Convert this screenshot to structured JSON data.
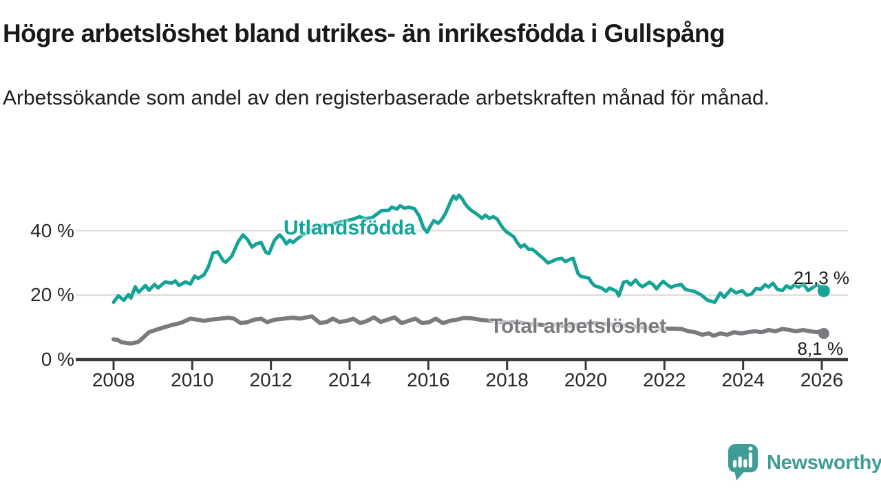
{
  "title": "Högre arbetslöshet bland utrikes- än inrikesfödda i Gullspång",
  "subtitle": "Arbetssökande som andel av den registerbaserade arbetskraften månad för månad.",
  "branding": {
    "logo_text": "Newsworthy",
    "logo_icon": "speech-bubble-with-bar-chart-and-exclamation",
    "logo_color": "#3f9d96"
  },
  "colors": {
    "foreign_born_line": "#14a396",
    "total_line": "#7a7a7f",
    "grid": "#d8d8d8",
    "axis": "#3a3a3e",
    "text": "#1e1e1e"
  },
  "chart_data": {
    "type": "line",
    "unit": "%",
    "grid": "horizontal",
    "legend": "inline-labels",
    "x_axis": {
      "ticks": [
        2008,
        2010,
        2012,
        2014,
        2016,
        2018,
        2020,
        2022,
        2024,
        2026
      ],
      "range": [
        2007.1,
        2026.7
      ]
    },
    "y_axis": {
      "ticks": [
        0,
        20,
        40
      ],
      "tick_labels": [
        "0 %",
        "20 %",
        "40 %"
      ],
      "range": [
        0,
        55
      ]
    },
    "series": [
      {
        "name": "Utlandsfödda",
        "color": "#14a396",
        "end_label": "21,3 %",
        "end_value": 21.3,
        "points": [
          [
            2008.0,
            17.8
          ],
          [
            2008.12,
            19.8
          ],
          [
            2008.26,
            18.4
          ],
          [
            2008.38,
            20.2
          ],
          [
            2008.44,
            19.1
          ],
          [
            2008.55,
            22.6
          ],
          [
            2008.64,
            20.9
          ],
          [
            2008.81,
            23.0
          ],
          [
            2008.9,
            21.5
          ],
          [
            2009.04,
            23.3
          ],
          [
            2009.13,
            22.2
          ],
          [
            2009.31,
            24.1
          ],
          [
            2009.48,
            23.7
          ],
          [
            2009.57,
            24.4
          ],
          [
            2009.66,
            23.0
          ],
          [
            2009.83,
            24.1
          ],
          [
            2009.95,
            23.4
          ],
          [
            2010.06,
            25.9
          ],
          [
            2010.15,
            25.2
          ],
          [
            2010.3,
            26.3
          ],
          [
            2010.41,
            28.8
          ],
          [
            2010.53,
            33.1
          ],
          [
            2010.65,
            33.4
          ],
          [
            2010.79,
            30.6
          ],
          [
            2010.85,
            30.2
          ],
          [
            2011.0,
            32.0
          ],
          [
            2011.17,
            36.6
          ],
          [
            2011.29,
            38.7
          ],
          [
            2011.4,
            37.3
          ],
          [
            2011.52,
            34.9
          ],
          [
            2011.63,
            35.9
          ],
          [
            2011.75,
            36.3
          ],
          [
            2011.87,
            33.3
          ],
          [
            2011.95,
            32.9
          ],
          [
            2012.09,
            37.0
          ],
          [
            2012.22,
            38.7
          ],
          [
            2012.3,
            37.7
          ],
          [
            2012.39,
            35.9
          ],
          [
            2012.48,
            37.0
          ],
          [
            2012.56,
            36.3
          ],
          [
            2012.65,
            37.3
          ],
          [
            2012.77,
            38.4
          ],
          [
            2012.9,
            39.3
          ],
          [
            2013.05,
            40.3
          ],
          [
            2013.2,
            41.0
          ],
          [
            2013.35,
            41.8
          ],
          [
            2013.5,
            41.4
          ],
          [
            2013.65,
            42.3
          ],
          [
            2013.8,
            42.8
          ],
          [
            2013.95,
            43.2
          ],
          [
            2014.1,
            43.6
          ],
          [
            2014.25,
            44.3
          ],
          [
            2014.4,
            43.7
          ],
          [
            2014.58,
            44.1
          ],
          [
            2014.81,
            46.2
          ],
          [
            2014.99,
            46.3
          ],
          [
            2015.07,
            47.3
          ],
          [
            2015.2,
            46.7
          ],
          [
            2015.28,
            47.7
          ],
          [
            2015.4,
            47.0
          ],
          [
            2015.5,
            47.3
          ],
          [
            2015.65,
            46.8
          ],
          [
            2015.77,
            44.5
          ],
          [
            2015.88,
            40.8
          ],
          [
            2015.97,
            39.5
          ],
          [
            2016.06,
            41.6
          ],
          [
            2016.14,
            43.1
          ],
          [
            2016.25,
            42.3
          ],
          [
            2016.32,
            43.1
          ],
          [
            2016.43,
            45.2
          ],
          [
            2016.49,
            46.9
          ],
          [
            2016.58,
            49.4
          ],
          [
            2016.64,
            50.8
          ],
          [
            2016.71,
            49.8
          ],
          [
            2016.78,
            51.0
          ],
          [
            2016.86,
            49.9
          ],
          [
            2016.93,
            48.4
          ],
          [
            2017.0,
            47.3
          ],
          [
            2017.1,
            46.2
          ],
          [
            2017.19,
            45.5
          ],
          [
            2017.3,
            44.5
          ],
          [
            2017.36,
            43.8
          ],
          [
            2017.45,
            44.8
          ],
          [
            2017.55,
            43.8
          ],
          [
            2017.65,
            44.3
          ],
          [
            2017.75,
            43.6
          ],
          [
            2017.83,
            42.0
          ],
          [
            2017.91,
            40.6
          ],
          [
            2018.0,
            39.5
          ],
          [
            2018.09,
            38.8
          ],
          [
            2018.17,
            38.1
          ],
          [
            2018.26,
            36.3
          ],
          [
            2018.35,
            34.9
          ],
          [
            2018.44,
            35.6
          ],
          [
            2018.55,
            34.2
          ],
          [
            2018.63,
            34.3
          ],
          [
            2018.72,
            33.5
          ],
          [
            2018.81,
            32.5
          ],
          [
            2018.92,
            31.4
          ],
          [
            2019.04,
            30.0
          ],
          [
            2019.13,
            30.4
          ],
          [
            2019.25,
            31.1
          ],
          [
            2019.39,
            31.4
          ],
          [
            2019.48,
            30.4
          ],
          [
            2019.6,
            31.1
          ],
          [
            2019.68,
            31.4
          ],
          [
            2019.8,
            26.8
          ],
          [
            2019.88,
            25.8
          ],
          [
            2020.0,
            25.5
          ],
          [
            2020.09,
            25.2
          ],
          [
            2020.14,
            24.0
          ],
          [
            2020.23,
            22.9
          ],
          [
            2020.31,
            22.6
          ],
          [
            2020.4,
            22.2
          ],
          [
            2020.52,
            21.2
          ],
          [
            2020.6,
            22.2
          ],
          [
            2020.7,
            21.7
          ],
          [
            2020.78,
            21.2
          ],
          [
            2020.84,
            19.8
          ],
          [
            2020.96,
            24.0
          ],
          [
            2021.05,
            24.3
          ],
          [
            2021.14,
            23.2
          ],
          [
            2021.21,
            24.0
          ],
          [
            2021.27,
            24.7
          ],
          [
            2021.35,
            23.4
          ],
          [
            2021.44,
            22.6
          ],
          [
            2021.53,
            23.3
          ],
          [
            2021.62,
            24.0
          ],
          [
            2021.71,
            23.3
          ],
          [
            2021.8,
            21.9
          ],
          [
            2021.88,
            23.2
          ],
          [
            2021.97,
            24.3
          ],
          [
            2022.06,
            23.3
          ],
          [
            2022.17,
            22.4
          ],
          [
            2022.26,
            22.9
          ],
          [
            2022.43,
            23.3
          ],
          [
            2022.52,
            21.9
          ],
          [
            2022.61,
            21.5
          ],
          [
            2022.75,
            21.2
          ],
          [
            2022.93,
            20.1
          ],
          [
            2023.1,
            18.4
          ],
          [
            2023.28,
            17.8
          ],
          [
            2023.42,
            20.7
          ],
          [
            2023.52,
            19.3
          ],
          [
            2023.69,
            21.8
          ],
          [
            2023.82,
            20.7
          ],
          [
            2023.98,
            21.4
          ],
          [
            2024.09,
            20.0
          ],
          [
            2024.21,
            20.3
          ],
          [
            2024.33,
            22.1
          ],
          [
            2024.45,
            21.8
          ],
          [
            2024.56,
            23.2
          ],
          [
            2024.65,
            22.5
          ],
          [
            2024.76,
            23.7
          ],
          [
            2024.87,
            21.8
          ],
          [
            2025.0,
            21.4
          ],
          [
            2025.1,
            22.9
          ],
          [
            2025.21,
            22.1
          ],
          [
            2025.3,
            23.2
          ],
          [
            2025.41,
            22.5
          ],
          [
            2025.53,
            23.6
          ],
          [
            2025.65,
            21.4
          ],
          [
            2025.74,
            22.1
          ],
          [
            2025.88,
            23.2
          ],
          [
            2025.96,
            22.5
          ],
          [
            2026.05,
            21.3
          ]
        ]
      },
      {
        "name": "Total arbetslöshet",
        "color": "#7a7a7f",
        "end_label": "8,1 %",
        "end_value": 8.1,
        "points": [
          [
            2008.0,
            6.3
          ],
          [
            2008.1,
            6.1
          ],
          [
            2008.2,
            5.4
          ],
          [
            2008.33,
            5.1
          ],
          [
            2008.45,
            5.0
          ],
          [
            2008.57,
            5.3
          ],
          [
            2008.64,
            5.6
          ],
          [
            2008.78,
            7.1
          ],
          [
            2008.9,
            8.5
          ],
          [
            2009.07,
            9.2
          ],
          [
            2009.25,
            9.9
          ],
          [
            2009.48,
            10.7
          ],
          [
            2009.71,
            11.4
          ],
          [
            2009.95,
            12.7
          ],
          [
            2010.12,
            12.4
          ],
          [
            2010.3,
            12.0
          ],
          [
            2010.47,
            12.4
          ],
          [
            2010.71,
            12.7
          ],
          [
            2010.91,
            13.0
          ],
          [
            2011.06,
            12.7
          ],
          [
            2011.23,
            11.3
          ],
          [
            2011.4,
            11.6
          ],
          [
            2011.58,
            12.4
          ],
          [
            2011.75,
            12.7
          ],
          [
            2011.9,
            11.6
          ],
          [
            2012.1,
            12.4
          ],
          [
            2012.33,
            12.7
          ],
          [
            2012.56,
            13.0
          ],
          [
            2012.74,
            12.7
          ],
          [
            2012.9,
            13.1
          ],
          [
            2013.04,
            13.4
          ],
          [
            2013.25,
            11.3
          ],
          [
            2013.42,
            11.7
          ],
          [
            2013.57,
            12.7
          ],
          [
            2013.74,
            11.7
          ],
          [
            2013.92,
            12.0
          ],
          [
            2014.09,
            12.7
          ],
          [
            2014.27,
            11.3
          ],
          [
            2014.44,
            12.0
          ],
          [
            2014.62,
            13.1
          ],
          [
            2014.79,
            11.7
          ],
          [
            2014.97,
            12.4
          ],
          [
            2015.14,
            13.1
          ],
          [
            2015.32,
            11.3
          ],
          [
            2015.49,
            12.0
          ],
          [
            2015.67,
            12.7
          ],
          [
            2015.84,
            11.3
          ],
          [
            2016.02,
            11.6
          ],
          [
            2016.19,
            12.7
          ],
          [
            2016.37,
            11.3
          ],
          [
            2016.54,
            12.0
          ],
          [
            2016.72,
            12.4
          ],
          [
            2016.9,
            12.9
          ],
          [
            2017.1,
            12.8
          ],
          [
            2017.35,
            12.3
          ],
          [
            2017.6,
            12.0
          ],
          [
            2017.8,
            11.7
          ],
          [
            2018.0,
            11.4
          ],
          [
            2018.25,
            11.6
          ],
          [
            2018.5,
            11.1
          ],
          [
            2018.75,
            10.9
          ],
          [
            2019.0,
            10.6
          ],
          [
            2019.25,
            10.7
          ],
          [
            2019.5,
            10.4
          ],
          [
            2019.75,
            10.7
          ],
          [
            2020.0,
            11.0
          ],
          [
            2020.25,
            11.3
          ],
          [
            2020.5,
            11.0
          ],
          [
            2020.75,
            10.7
          ],
          [
            2021.0,
            10.5
          ],
          [
            2021.25,
            10.2
          ],
          [
            2021.5,
            9.9
          ],
          [
            2021.75,
            9.7
          ],
          [
            2022.0,
            9.6
          ],
          [
            2022.2,
            9.6
          ],
          [
            2022.43,
            9.5
          ],
          [
            2022.61,
            8.8
          ],
          [
            2022.78,
            8.5
          ],
          [
            2022.96,
            7.7
          ],
          [
            2023.13,
            8.1
          ],
          [
            2023.25,
            7.4
          ],
          [
            2023.42,
            8.1
          ],
          [
            2023.6,
            7.7
          ],
          [
            2023.77,
            8.5
          ],
          [
            2023.95,
            8.1
          ],
          [
            2024.12,
            8.5
          ],
          [
            2024.3,
            8.8
          ],
          [
            2024.47,
            8.5
          ],
          [
            2024.65,
            9.2
          ],
          [
            2024.82,
            8.8
          ],
          [
            2025.0,
            9.5
          ],
          [
            2025.17,
            9.2
          ],
          [
            2025.35,
            8.8
          ],
          [
            2025.52,
            9.2
          ],
          [
            2025.7,
            8.8
          ],
          [
            2025.87,
            8.5
          ],
          [
            2026.0,
            8.9
          ],
          [
            2026.05,
            8.1
          ]
        ]
      }
    ]
  }
}
